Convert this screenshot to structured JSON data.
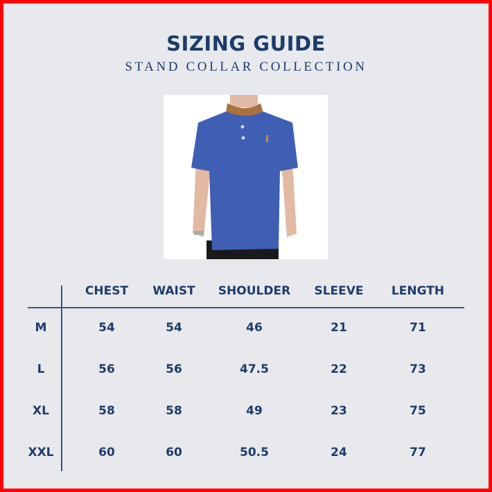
{
  "header": {
    "title": "SIZING GUIDE",
    "subtitle": "STAND COLLAR COLLECTION"
  },
  "product_image": {
    "description_icon": "blue-stand-collar-polo-shirt",
    "colors": {
      "shirt": "#3f5fb5",
      "collar": "#a8713f"
    }
  },
  "table": {
    "columns": [
      "CHEST",
      "WAIST",
      "SHOULDER",
      "SLEEVE",
      "LENGTH"
    ],
    "rows": [
      {
        "size": "M",
        "values": [
          "54",
          "54",
          "46",
          "21",
          "71"
        ]
      },
      {
        "size": "L",
        "values": [
          "56",
          "56",
          "47.5",
          "22",
          "73"
        ]
      },
      {
        "size": "XL",
        "values": [
          "58",
          "58",
          "49",
          "23",
          "75"
        ]
      },
      {
        "size": "XXL",
        "values": [
          "60",
          "60",
          "50.5",
          "24",
          "77"
        ]
      }
    ]
  },
  "colors": {
    "text": "#1d3c6b",
    "background": "#e8e9ed",
    "border": "#ff0000"
  }
}
